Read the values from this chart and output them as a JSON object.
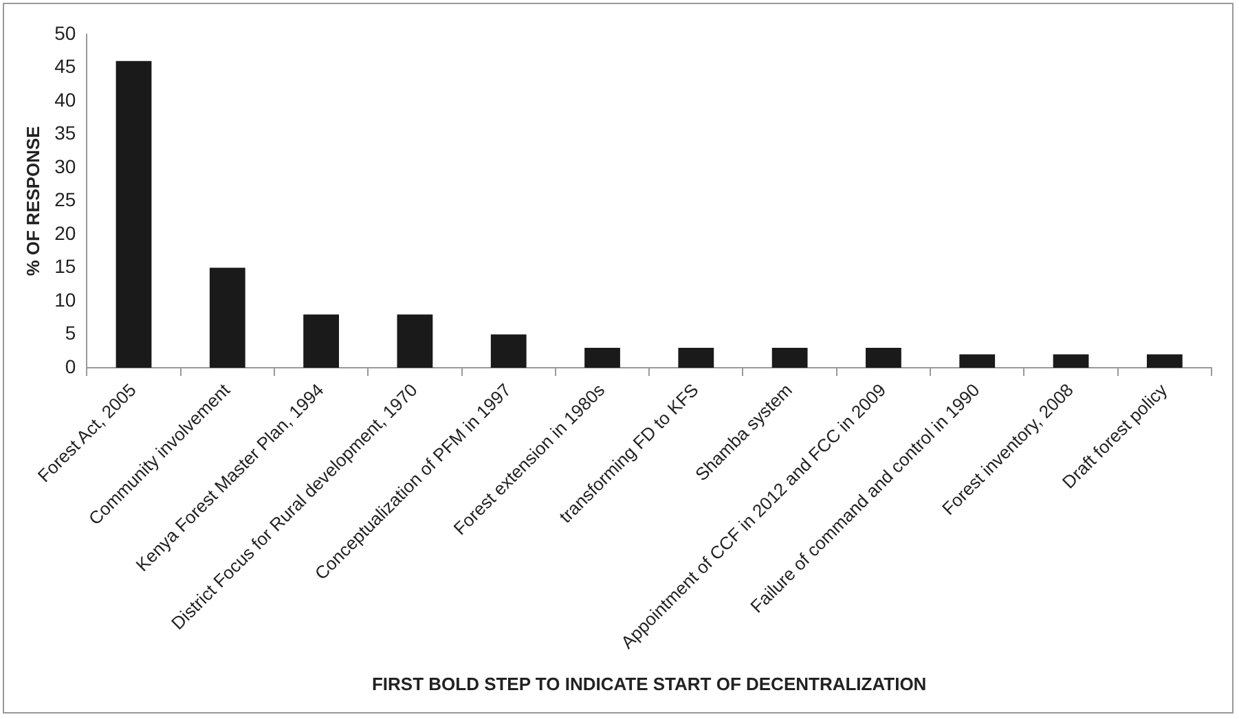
{
  "chart_data": {
    "type": "bar",
    "xlabel": "FIRST BOLD STEP TO INDICATE START OF DECENTRALIZATION",
    "ylabel": "% OF RESPONSE",
    "categories": [
      "Forest Act, 2005",
      "Community involvement",
      "Kenya Forest Master Plan, 1994",
      "District Focus for Rural development, 1970",
      "Conceptualization of PFM in 1997",
      "Forest extension in 1980s",
      "transforming FD to KFS",
      "Shamba system",
      "Appointment of CCF in 2012 and FCC in 2009",
      "Failure of command and control in 1990",
      "Forest inventory, 2008",
      "Draft forest policy"
    ],
    "values": [
      46,
      15,
      8,
      8,
      5,
      3,
      3,
      3,
      3,
      2,
      2,
      2
    ],
    "color": "#1a1a1a",
    "ylim": [
      0,
      50
    ],
    "yticks": [
      0,
      5,
      10,
      15,
      20,
      25,
      30,
      35,
      40,
      45,
      50
    ],
    "grid": false,
    "legend": false
  }
}
